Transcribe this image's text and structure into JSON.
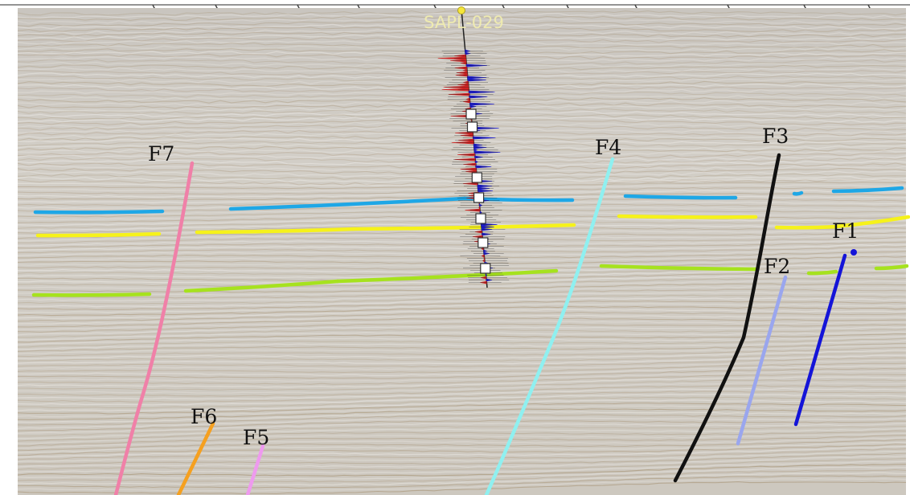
{
  "well": {
    "name": "SAPL-029",
    "marker_color": "#f5e63a",
    "trace_positive_color": "#1a1ad0",
    "trace_negative_color": "#d02020",
    "marker_count": 9
  },
  "horizons": [
    {
      "name": "horizon-blue",
      "color": "#1ea7e6"
    },
    {
      "name": "horizon-yellow",
      "color": "#f6f21a"
    },
    {
      "name": "horizon-green",
      "color": "#a6e21e"
    }
  ],
  "faults": [
    {
      "label": "F1",
      "color": "#1414d8"
    },
    {
      "label": "F2",
      "color": "#9aa6ee"
    },
    {
      "label": "F3",
      "color": "#111111"
    },
    {
      "label": "F4",
      "color": "#8ff0f0"
    },
    {
      "label": "F5",
      "color": "#ee9aee"
    },
    {
      "label": "F6",
      "color": "#f5a020"
    },
    {
      "label": "F7",
      "color": "#f080a8"
    }
  ],
  "seismic_background": {
    "base_color": "#cfcac2",
    "trough_color": "#8a6a3a",
    "peak_color": "#f4f2ee"
  }
}
